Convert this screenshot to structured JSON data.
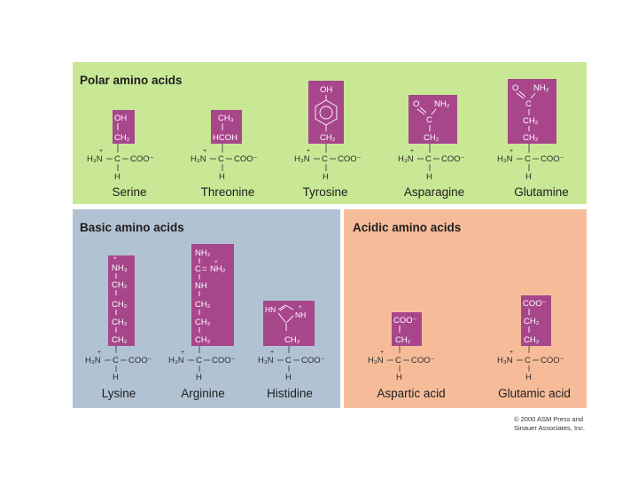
{
  "panels": {
    "polar": "Polar amino acids",
    "basic": "Basic amino acids",
    "acidic": "Acidic amino acids"
  },
  "backbone": {
    "amino": "H₃N",
    "plus": "+",
    "alpha_c": "C",
    "carboxylate": "COO⁻",
    "alpha_h": "H"
  },
  "amino_acids": {
    "serine": {
      "name": "Serine",
      "side_chain": [
        "OH",
        "CH₂"
      ]
    },
    "threonine": {
      "name": "Threonine",
      "side_chain": [
        "CH₃",
        "HCOH"
      ]
    },
    "tyrosine": {
      "name": "Tyrosine",
      "side_chain": [
        "OH",
        "CH₂"
      ]
    },
    "asparagine": {
      "name": "Asparagine",
      "side_chain": [
        "O",
        "NH₂",
        "C",
        "CH₂"
      ]
    },
    "glutamine": {
      "name": "Glutamine",
      "side_chain": [
        "O",
        "NH₂",
        "C",
        "CH₂",
        "CH₂"
      ]
    },
    "lysine": {
      "name": "Lysine",
      "side_chain": [
        "+",
        "NH₃",
        "CH₂",
        "CH₂",
        "CH₂",
        "CH₂"
      ]
    },
    "arginine": {
      "name": "Arginine",
      "side_chain": [
        "NH₂",
        "C",
        "=",
        "+",
        "NH₂",
        "NH",
        "CH₂",
        "CH₂",
        "CH₂"
      ]
    },
    "histidine": {
      "name": "Histidine",
      "side_chain": [
        "HN",
        "NH",
        "+",
        "CH₂"
      ]
    },
    "aspartic": {
      "name": "Aspartic acid",
      "side_chain": [
        "COO⁻",
        "CH₂"
      ]
    },
    "glutamic": {
      "name": "Glutamic acid",
      "side_chain": [
        "COO⁻",
        "CH₂",
        "CH₂"
      ]
    }
  },
  "copyright": [
    "© 2000 ASM Press and",
    "Sinauer Associates, Inc."
  ]
}
